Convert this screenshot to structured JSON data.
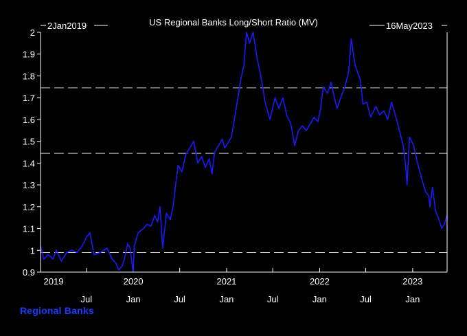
{
  "chart_data": {
    "type": "line",
    "title": "US Regional Banks Long/Short Ratio (MV)",
    "start_label": "2Jan2019",
    "end_label": "16May2023",
    "x_start": "2019-01-02",
    "x_end": "2023-05-16",
    "ylim": [
      0.9,
      2.0
    ],
    "y_ticks": [
      "0.9",
      "1",
      "1.1",
      "1.2",
      "1.3",
      "1.4",
      "1.5",
      "1.6",
      "1.7",
      "1.8",
      "1.9",
      "2"
    ],
    "reference_lines": [
      0.99,
      1.445,
      1.745
    ],
    "year_labels": [
      {
        "label": "2019",
        "date": "2019-01-02"
      },
      {
        "label": "2020",
        "date": "2020-01-01"
      },
      {
        "label": "2021",
        "date": "2021-01-01"
      },
      {
        "label": "2022",
        "date": "2022-01-01"
      },
      {
        "label": "2023",
        "date": "2023-01-01"
      }
    ],
    "month_ticks": [
      {
        "label": "Jul",
        "date": "2019-07-01"
      },
      {
        "label": "Jan",
        "date": "2020-01-01"
      },
      {
        "label": "Jul",
        "date": "2020-07-01"
      },
      {
        "label": "Jan",
        "date": "2021-01-01"
      },
      {
        "label": "Jul",
        "date": "2021-07-01"
      },
      {
        "label": "Jan",
        "date": "2022-01-01"
      },
      {
        "label": "Jul",
        "date": "2022-07-01"
      },
      {
        "label": "Jan",
        "date": "2023-01-01"
      }
    ],
    "series": [
      {
        "name": "Regional Banks",
        "color": "#1a1aff",
        "points": [
          [
            "2019-01-02",
            1.02
          ],
          [
            "2019-01-15",
            0.96
          ],
          [
            "2019-02-01",
            0.98
          ],
          [
            "2019-02-20",
            0.96
          ],
          [
            "2019-03-05",
            1.0
          ],
          [
            "2019-03-25",
            0.95
          ],
          [
            "2019-04-15",
            0.99
          ],
          [
            "2019-05-05",
            1.0
          ],
          [
            "2019-05-25",
            0.99
          ],
          [
            "2019-06-15",
            1.02
          ],
          [
            "2019-07-01",
            1.06
          ],
          [
            "2019-07-15",
            1.08
          ],
          [
            "2019-07-31",
            0.98
          ],
          [
            "2019-08-25",
            0.99
          ],
          [
            "2019-09-20",
            1.01
          ],
          [
            "2019-10-10",
            0.96
          ],
          [
            "2019-10-25",
            0.94
          ],
          [
            "2019-11-05",
            0.91
          ],
          [
            "2019-11-20",
            0.93
          ],
          [
            "2019-12-01",
            0.98
          ],
          [
            "2019-12-10",
            1.03
          ],
          [
            "2019-12-20",
            1.01
          ],
          [
            "2019-12-31",
            0.9
          ],
          [
            "2020-01-05",
            1.02
          ],
          [
            "2020-01-20",
            1.08
          ],
          [
            "2020-02-10",
            1.1
          ],
          [
            "2020-02-25",
            1.12
          ],
          [
            "2020-03-10",
            1.11
          ],
          [
            "2020-03-25",
            1.16
          ],
          [
            "2020-04-05",
            1.13
          ],
          [
            "2020-04-15",
            1.2
          ],
          [
            "2020-04-25",
            1.01
          ],
          [
            "2020-05-10",
            1.17
          ],
          [
            "2020-05-25",
            1.14
          ],
          [
            "2020-06-05",
            1.2
          ],
          [
            "2020-06-15",
            1.3
          ],
          [
            "2020-06-25",
            1.39
          ],
          [
            "2020-07-10",
            1.36
          ],
          [
            "2020-07-25",
            1.44
          ],
          [
            "2020-08-15",
            1.48
          ],
          [
            "2020-08-25",
            1.5
          ],
          [
            "2020-09-10",
            1.4
          ],
          [
            "2020-09-25",
            1.43
          ],
          [
            "2020-10-10",
            1.38
          ],
          [
            "2020-10-25",
            1.42
          ],
          [
            "2020-11-05",
            1.35
          ],
          [
            "2020-11-15",
            1.45
          ],
          [
            "2020-11-30",
            1.48
          ],
          [
            "2020-12-15",
            1.51
          ],
          [
            "2020-12-25",
            1.47
          ],
          [
            "2021-01-05",
            1.49
          ],
          [
            "2021-01-20",
            1.52
          ],
          [
            "2021-02-05",
            1.63
          ],
          [
            "2021-02-25",
            1.78
          ],
          [
            "2021-03-10",
            1.85
          ],
          [
            "2021-03-20",
            2.0
          ],
          [
            "2021-04-01",
            1.95
          ],
          [
            "2021-04-15",
            2.0
          ],
          [
            "2021-05-01",
            1.88
          ],
          [
            "2021-05-15",
            1.8
          ],
          [
            "2021-06-01",
            1.68
          ],
          [
            "2021-06-20",
            1.6
          ],
          [
            "2021-07-10",
            1.7
          ],
          [
            "2021-07-25",
            1.65
          ],
          [
            "2021-08-10",
            1.7
          ],
          [
            "2021-08-25",
            1.62
          ],
          [
            "2021-09-10",
            1.58
          ],
          [
            "2021-09-25",
            1.48
          ],
          [
            "2021-10-10",
            1.55
          ],
          [
            "2021-10-25",
            1.57
          ],
          [
            "2021-11-10",
            1.55
          ],
          [
            "2021-11-25",
            1.58
          ],
          [
            "2021-12-10",
            1.61
          ],
          [
            "2021-12-25",
            1.59
          ],
          [
            "2022-01-05",
            1.65
          ],
          [
            "2022-01-15",
            1.75
          ],
          [
            "2022-02-01",
            1.72
          ],
          [
            "2022-02-15",
            1.77
          ],
          [
            "2022-02-28",
            1.7
          ],
          [
            "2022-03-10",
            1.65
          ],
          [
            "2022-03-25",
            1.7
          ],
          [
            "2022-04-10",
            1.75
          ],
          [
            "2022-04-25",
            1.82
          ],
          [
            "2022-05-05",
            1.97
          ],
          [
            "2022-05-20",
            1.85
          ],
          [
            "2022-06-10",
            1.78
          ],
          [
            "2022-06-20",
            1.67
          ],
          [
            "2022-07-05",
            1.68
          ],
          [
            "2022-07-20",
            1.61
          ],
          [
            "2022-08-10",
            1.66
          ],
          [
            "2022-08-25",
            1.62
          ],
          [
            "2022-09-10",
            1.64
          ],
          [
            "2022-09-25",
            1.6
          ],
          [
            "2022-10-10",
            1.68
          ],
          [
            "2022-10-25",
            1.62
          ],
          [
            "2022-11-10",
            1.55
          ],
          [
            "2022-11-25",
            1.48
          ],
          [
            "2022-12-05",
            1.38
          ],
          [
            "2022-12-10",
            1.3
          ],
          [
            "2022-12-20",
            1.52
          ],
          [
            "2023-01-05",
            1.48
          ],
          [
            "2023-01-20",
            1.4
          ],
          [
            "2023-02-05",
            1.33
          ],
          [
            "2023-02-20",
            1.27
          ],
          [
            "2023-03-05",
            1.25
          ],
          [
            "2023-03-10",
            1.2
          ],
          [
            "2023-03-20",
            1.29
          ],
          [
            "2023-04-01",
            1.18
          ],
          [
            "2023-04-15",
            1.14
          ],
          [
            "2023-04-25",
            1.1
          ],
          [
            "2023-05-05",
            1.12
          ],
          [
            "2023-05-16",
            1.16
          ]
        ]
      }
    ]
  }
}
